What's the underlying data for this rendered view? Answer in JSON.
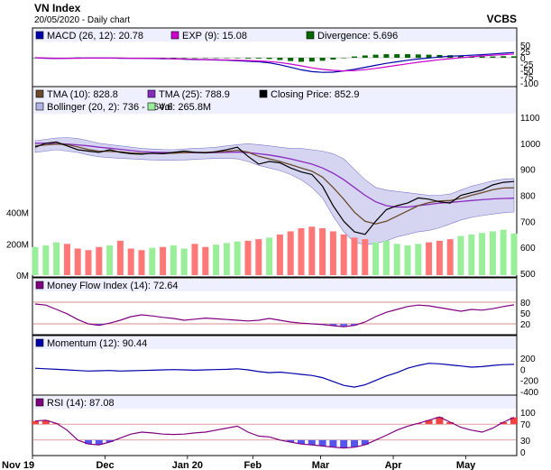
{
  "header": {
    "title": "VN Index",
    "subtitle": "20/05/2020 - Daily chart",
    "source": "VCBS"
  },
  "x_axis_labels": [
    "Nov 19",
    "Dec",
    "Jan 20",
    "Feb",
    "Mar",
    "Apr",
    "May"
  ],
  "colors": {
    "macd": "#0000aa",
    "exp": "#cc00cc",
    "divergence": "#006600",
    "tma10": "#6b4a2b",
    "tma25": "#8a2bbf",
    "close": "#000000",
    "bollinger": "#b3b3e6",
    "volume": "#99ee99",
    "volume_down": "#ff7777",
    "mfi": "#800080",
    "momentum": "#0000aa",
    "rsi": "#800080",
    "panel_bg": "#ffffff",
    "legend_bg": "#eef0ff",
    "axis_bg": "#dcdcdc"
  },
  "chart_data": [
    {
      "type": "line",
      "panel": "macd",
      "legend": [
        "MACD (26, 12): 20.78",
        "EXP (9): 15.08",
        "Divergence: 5.696"
      ],
      "y_ticks": [
        "50",
        "25",
        "0",
        "-25",
        "-50",
        "-75",
        "-100"
      ],
      "ylim": [
        -100,
        50
      ],
      "series": [
        {
          "name": "MACD (26, 12)",
          "values": [
            0,
            -2,
            -3,
            -2,
            -1,
            -1,
            -1,
            -1,
            -2,
            -2,
            -2,
            -3,
            -4,
            -4,
            -6,
            -7,
            -8,
            -9,
            -10,
            -12,
            -14,
            -16,
            -20,
            -28,
            -38,
            -48,
            -55,
            -58,
            -57,
            -52,
            -46,
            -38,
            -30,
            -22,
            -16,
            -10,
            -5,
            -1,
            3,
            6,
            8,
            10,
            12,
            15,
            18,
            20.78
          ]
        },
        {
          "name": "EXP (9)",
          "values": [
            0,
            -1,
            -2,
            -2,
            -2,
            -1,
            -1,
            -1,
            -1,
            -2,
            -2,
            -2,
            -3,
            -4,
            -5,
            -6,
            -7,
            -8,
            -9,
            -10,
            -11,
            -13,
            -15,
            -19,
            -25,
            -32,
            -40,
            -46,
            -50,
            -52,
            -51,
            -47,
            -42,
            -36,
            -30,
            -24,
            -18,
            -13,
            -8,
            -4,
            0,
            4,
            7,
            10,
            12,
            15.08
          ]
        },
        {
          "name": "Divergence",
          "values": [
            0,
            -1,
            -1,
            0,
            1,
            0,
            0,
            0,
            -1,
            0,
            0,
            -1,
            -1,
            0,
            -1,
            -1,
            -1,
            -1,
            -1,
            -2,
            -3,
            -3,
            -5,
            -9,
            -13,
            -16,
            -15,
            -12,
            -7,
            0,
            5,
            9,
            12,
            14,
            14,
            14,
            13,
            12,
            11,
            10,
            8,
            6,
            5,
            5,
            6,
            5.696
          ]
        }
      ]
    },
    {
      "type": "line",
      "panel": "price",
      "legend": [
        "TMA (10): 828.8",
        "TMA (25): 788.9",
        "Closing Price: 852.9",
        "Bollinger (20, 2): 736 - 864.6",
        "Vol: 265.8M"
      ],
      "y_ticks": [
        "1100",
        "1000",
        "900",
        "800",
        "700",
        "600",
        "500"
      ],
      "volume_ticks": [
        "400M",
        "200M",
        "0M"
      ],
      "ylim": [
        500,
        1100
      ],
      "series": [
        {
          "name": "Closing Price",
          "values": [
            985,
            1000,
            1005,
            990,
            975,
            970,
            965,
            975,
            965,
            960,
            958,
            962,
            960,
            965,
            970,
            965,
            963,
            968,
            975,
            985,
            950,
            920,
            930,
            925,
            905,
            890,
            880,
            835,
            760,
            700,
            660,
            650,
            700,
            745,
            760,
            770,
            790,
            785,
            775,
            770,
            800,
            810,
            820,
            840,
            850,
            852.9
          ]
        },
        {
          "name": "TMA (10)",
          "values": [
            990,
            994,
            997,
            995,
            986,
            976,
            970,
            969,
            967,
            963,
            961,
            961,
            961,
            962,
            964,
            965,
            965,
            966,
            969,
            973,
            966,
            950,
            940,
            930,
            918,
            905,
            893,
            870,
            830,
            785,
            735,
            700,
            690,
            700,
            720,
            740,
            760,
            772,
            778,
            780,
            788,
            800,
            810,
            822,
            828,
            828.8
          ]
        },
        {
          "name": "TMA (25)",
          "values": [
            1000,
            1000,
            999,
            997,
            994,
            990,
            985,
            981,
            977,
            972,
            968,
            966,
            965,
            964,
            964,
            964,
            964,
            964,
            965,
            966,
            964,
            960,
            955,
            948,
            940,
            930,
            920,
            905,
            885,
            860,
            830,
            800,
            775,
            760,
            755,
            755,
            760,
            765,
            770,
            773,
            776,
            780,
            783,
            786,
            788,
            788.9
          ]
        },
        {
          "name": "Bollinger upper",
          "values": [
            1010,
            1015,
            1020,
            1022,
            1018,
            1010,
            1000,
            995,
            990,
            985,
            980,
            978,
            976,
            975,
            978,
            980,
            982,
            985,
            990,
            995,
            998,
            995,
            990,
            985,
            980,
            980,
            975,
            970,
            960,
            940,
            900,
            860,
            830,
            820,
            815,
            810,
            805,
            800,
            800,
            805,
            820,
            835,
            845,
            855,
            862,
            864.6
          ]
        },
        {
          "name": "Bollinger lower",
          "values": [
            965,
            970,
            975,
            970,
            965,
            955,
            948,
            945,
            942,
            940,
            938,
            936,
            935,
            935,
            936,
            938,
            940,
            942,
            942,
            940,
            930,
            915,
            905,
            895,
            880,
            860,
            830,
            790,
            720,
            660,
            620,
            610,
            615,
            625,
            640,
            650,
            660,
            665,
            675,
            690,
            705,
            715,
            722,
            728,
            733,
            736
          ]
        },
        {
          "name": "Volume (M)",
          "values": [
            180,
            190,
            210,
            200,
            170,
            160,
            180,
            190,
            220,
            170,
            160,
            175,
            180,
            190,
            170,
            200,
            180,
            195,
            205,
            215,
            220,
            230,
            240,
            260,
            280,
            300,
            310,
            300,
            280,
            260,
            240,
            230,
            210,
            220,
            200,
            190,
            200,
            210,
            220,
            230,
            250,
            260,
            270,
            280,
            290,
            265.8
          ]
        }
      ]
    },
    {
      "type": "line",
      "panel": "mfi",
      "legend": [
        "Money Flow Index (14): 72.64"
      ],
      "y_ticks": [
        "80",
        "50",
        "20"
      ],
      "ylim": [
        0,
        100
      ],
      "series": [
        {
          "name": "Money Flow Index (14)",
          "values": [
            75,
            72,
            60,
            48,
            32,
            20,
            16,
            22,
            30,
            40,
            45,
            42,
            38,
            35,
            30,
            33,
            36,
            34,
            32,
            30,
            28,
            30,
            35,
            30,
            25,
            22,
            20,
            18,
            15,
            12,
            16,
            25,
            40,
            52,
            60,
            68,
            72,
            70,
            65,
            60,
            55,
            60,
            58,
            62,
            68,
            72.64
          ]
        }
      ]
    },
    {
      "type": "line",
      "panel": "momentum",
      "legend": [
        "Momentum (12): 90.44"
      ],
      "y_ticks": [
        "200",
        "0",
        "-200",
        "-400"
      ],
      "ylim": [
        -400,
        300
      ],
      "series": [
        {
          "name": "Momentum (12)",
          "values": [
            20,
            10,
            0,
            -10,
            -20,
            -30,
            -25,
            -20,
            -30,
            -25,
            -20,
            -15,
            -10,
            -5,
            -10,
            -15,
            -10,
            -5,
            0,
            10,
            -10,
            -40,
            -60,
            -50,
            -70,
            -90,
            -110,
            -150,
            -220,
            -290,
            -320,
            -280,
            -200,
            -120,
            -60,
            20,
            70,
            110,
            100,
            80,
            60,
            40,
            50,
            70,
            85,
            90.44
          ]
        }
      ]
    },
    {
      "type": "line",
      "panel": "rsi",
      "legend": [
        "RSI (14): 87.08"
      ],
      "y_ticks": [
        "100",
        "70",
        "30",
        "0"
      ],
      "ylim": [
        0,
        100
      ],
      "series": [
        {
          "name": "RSI (14)",
          "values": [
            78,
            80,
            72,
            55,
            30,
            20,
            18,
            25,
            35,
            45,
            50,
            48,
            45,
            44,
            45,
            48,
            50,
            55,
            60,
            65,
            50,
            40,
            38,
            30,
            25,
            20,
            18,
            15,
            12,
            10,
            12,
            18,
            30,
            42,
            55,
            65,
            72,
            80,
            88,
            75,
            62,
            55,
            50,
            60,
            75,
            87.08
          ]
        }
      ]
    }
  ]
}
